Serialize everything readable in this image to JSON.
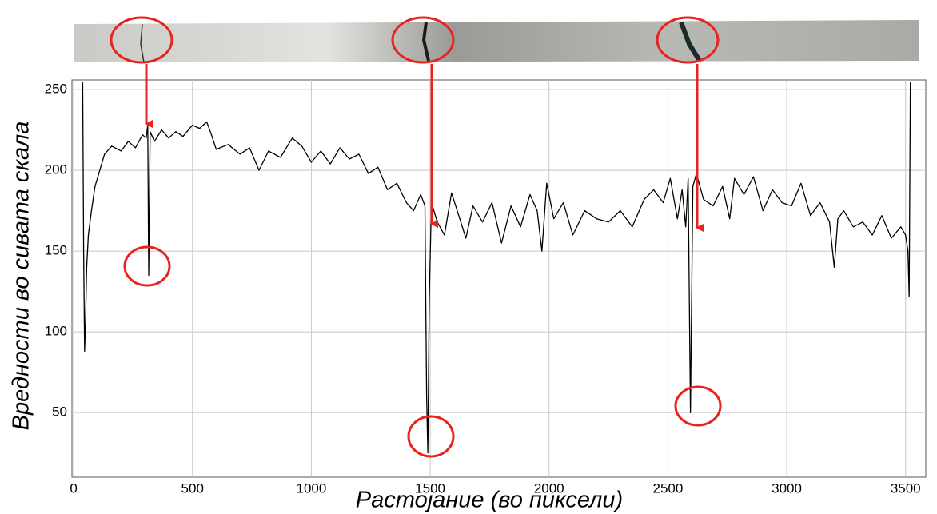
{
  "chart_data": {
    "type": "line",
    "x_label": "Растојание (во пиксели)",
    "y_label": "Вредности во сивата скала",
    "x": [
      38,
      42,
      46,
      50,
      55,
      62,
      75,
      90,
      110,
      130,
      160,
      200,
      230,
      260,
      290,
      305,
      312,
      316,
      322,
      340,
      370,
      400,
      430,
      460,
      500,
      530,
      560,
      580,
      600,
      650,
      700,
      740,
      780,
      820,
      870,
      920,
      960,
      1000,
      1040,
      1080,
      1120,
      1160,
      1200,
      1240,
      1280,
      1320,
      1360,
      1400,
      1430,
      1460,
      1478,
      1485,
      1490,
      1496,
      1505,
      1530,
      1560,
      1590,
      1620,
      1650,
      1680,
      1720,
      1760,
      1800,
      1840,
      1880,
      1920,
      1950,
      1970,
      1990,
      2020,
      2060,
      2100,
      2150,
      2200,
      2250,
      2300,
      2350,
      2400,
      2440,
      2480,
      2510,
      2540,
      2560,
      2575,
      2585,
      2595,
      2605,
      2620,
      2650,
      2690,
      2730,
      2760,
      2780,
      2820,
      2860,
      2900,
      2940,
      2980,
      3020,
      3060,
      3100,
      3140,
      3180,
      3200,
      3215,
      3240,
      3280,
      3320,
      3360,
      3400,
      3440,
      3480,
      3500,
      3510,
      3515,
      3520
    ],
    "values": [
      255,
      150,
      88,
      105,
      140,
      160,
      175,
      190,
      200,
      210,
      215,
      212,
      218,
      214,
      222,
      220,
      228,
      135,
      224,
      218,
      225,
      220,
      224,
      221,
      228,
      226,
      230,
      222,
      213,
      216,
      210,
      214,
      200,
      212,
      208,
      220,
      215,
      205,
      212,
      204,
      214,
      207,
      210,
      198,
      202,
      188,
      192,
      180,
      175,
      185,
      178,
      60,
      25,
      120,
      180,
      168,
      160,
      186,
      172,
      158,
      178,
      168,
      180,
      155,
      178,
      165,
      185,
      175,
      150,
      192,
      170,
      180,
      160,
      175,
      170,
      168,
      175,
      165,
      182,
      188,
      180,
      195,
      170,
      188,
      165,
      195,
      50,
      190,
      198,
      182,
      178,
      190,
      170,
      195,
      185,
      196,
      175,
      188,
      180,
      178,
      192,
      172,
      180,
      168,
      140,
      170,
      175,
      165,
      168,
      160,
      172,
      158,
      165,
      160,
      150,
      122,
      255
    ],
    "color": "#000000",
    "xlim": [
      -7,
      3585
    ],
    "ylim": [
      10,
      256
    ],
    "xticks": [
      0,
      500,
      1000,
      1500,
      2000,
      2500,
      3000,
      3500
    ],
    "yticks": [
      50,
      100,
      150,
      200,
      250
    ],
    "grid": true
  }
}
